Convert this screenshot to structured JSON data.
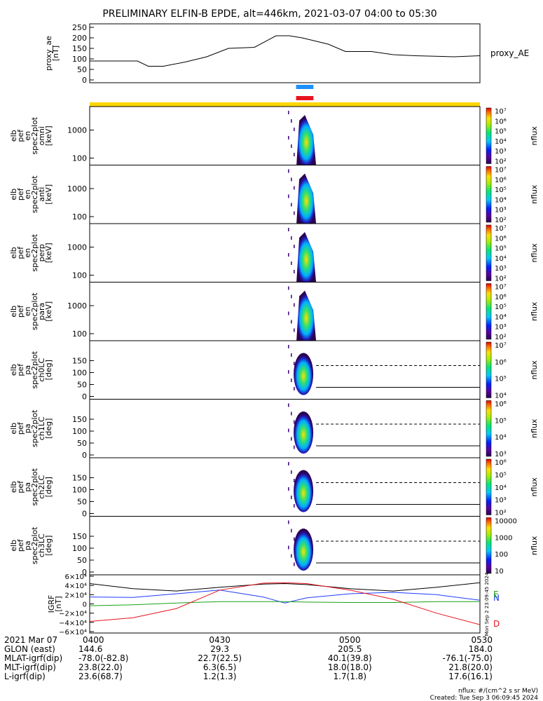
{
  "title": "PRELIMINARY ELFIN-B EPDE, alt=446km, 2021-03-07 04:00 to 05:30",
  "proxy_ae": {
    "ylabel": "proxy_ae [nT]",
    "ylabel_lines": [
      "proxy_ae",
      "[nT]"
    ],
    "legend": "proxy_AE",
    "yticks": [
      "0",
      "50",
      "100",
      "150",
      "200",
      "250"
    ],
    "chart_data": {
      "type": "line",
      "x_minutes": [
        0,
        11,
        13.5,
        17,
        22,
        27,
        32,
        38,
        43,
        46,
        49,
        55,
        59,
        62,
        65,
        70,
        75,
        84,
        90
      ],
      "values": [
        90,
        90,
        65,
        65,
        85,
        110,
        150,
        155,
        210,
        210,
        200,
        170,
        135,
        135,
        135,
        120,
        115,
        110,
        115
      ],
      "ylim": [
        0,
        260
      ]
    }
  },
  "markers": [
    {
      "color": "#1e90ff",
      "x_start_min": 47.6,
      "x_end_min": 51.6
    },
    {
      "color": "#e8141e",
      "x_start_min": 47.6,
      "x_end_min": 51.6
    }
  ],
  "science_bar_color": "#ffd700",
  "spectrogram_panels": [
    {
      "ylabel_lines": [
        "elb",
        "pef",
        "en",
        "spec2plot",
        "omni",
        "[keV]"
      ],
      "yticks": [
        "100",
        "1000"
      ],
      "scale": "log",
      "colorbar": {
        "label": "nflux",
        "ticks": [
          "10²",
          "10³",
          "10⁴",
          "10⁵",
          "10⁶",
          "10⁷"
        ]
      }
    },
    {
      "ylabel_lines": [
        "elb",
        "pef",
        "en",
        "spec2plot",
        "anti",
        "[keV]"
      ],
      "yticks": [
        "100",
        "1000"
      ],
      "scale": "log",
      "colorbar": {
        "label": "nflux",
        "ticks": [
          "10²",
          "10³",
          "10⁴",
          "10⁵",
          "10⁶",
          "10⁷"
        ]
      }
    },
    {
      "ylabel_lines": [
        "elb",
        "pef",
        "en",
        "spec2plot",
        "perp",
        "[keV]"
      ],
      "yticks": [
        "100",
        "1000"
      ],
      "scale": "log",
      "colorbar": {
        "label": "nflux",
        "ticks": [
          "10²",
          "10³",
          "10⁴",
          "10⁵",
          "10⁶",
          "10⁷"
        ]
      }
    },
    {
      "ylabel_lines": [
        "elb",
        "pef",
        "en",
        "spec2plot",
        "para",
        "[keV]"
      ],
      "yticks": [
        "100",
        "1000"
      ],
      "scale": "log",
      "colorbar": {
        "label": "nflux",
        "ticks": [
          "10²",
          "10³",
          "10⁴",
          "10⁵",
          "10⁶",
          "10⁷"
        ]
      }
    },
    {
      "ylabel_lines": [
        "elb",
        "pef",
        "pa",
        "spec2plot",
        "ch0LC",
        "[deg]"
      ],
      "yticks": [
        "0",
        "50",
        "100",
        "150"
      ],
      "scale": "lin",
      "colorbar": {
        "label": "nflux",
        "ticks": [
          "10⁴",
          "10⁵",
          "10⁶",
          "10⁷"
        ]
      }
    },
    {
      "ylabel_lines": [
        "elb",
        "pef",
        "pa",
        "spec2plot",
        "ch1LC",
        "[deg]"
      ],
      "yticks": [
        "0",
        "50",
        "100",
        "150"
      ],
      "scale": "lin",
      "colorbar": {
        "label": "nflux",
        "ticks": [
          "10³",
          "10⁴",
          "10⁵",
          "10⁶"
        ]
      }
    },
    {
      "ylabel_lines": [
        "elb",
        "pef",
        "pa",
        "spec2plot",
        "ch2LC",
        "[deg]"
      ],
      "yticks": [
        "0",
        "50",
        "100",
        "150"
      ],
      "scale": "lin",
      "colorbar": {
        "label": "nflux",
        "ticks": [
          "10²",
          "10³",
          "10⁴",
          "10⁵",
          "10⁶"
        ]
      }
    },
    {
      "ylabel_lines": [
        "elb",
        "pef",
        "pa",
        "spec2plot",
        "ch3LC",
        "[deg]"
      ],
      "yticks": [
        "0",
        "50",
        "100",
        "150"
      ],
      "scale": "lin",
      "colorbar": {
        "label": "nflux",
        "ticks": [
          "10",
          "100",
          "1000",
          "10000"
        ]
      }
    }
  ],
  "igrf": {
    "ylabel_lines": [
      "IGRF",
      "[nT]"
    ],
    "yticks": [
      "−6×10⁴",
      "−4×10⁴",
      "−2×10⁴",
      "0",
      "2×10⁴",
      "4×10⁴",
      "6×10⁴"
    ],
    "legend": [
      {
        "label": "N",
        "color": "#1e3cff"
      },
      {
        "label": "E",
        "color": "#1aa01a"
      },
      {
        "label": "D",
        "color": "#e8141e"
      }
    ],
    "chart_data": {
      "type": "line",
      "ylim": [
        -60000,
        60000
      ],
      "x_minutes": [
        0,
        10,
        20,
        30,
        40,
        45,
        50,
        60,
        70,
        80,
        90
      ],
      "series": [
        {
          "color": "#000000",
          "values": [
            44000,
            33000,
            28000,
            36000,
            43000,
            44000,
            42000,
            33000,
            28000,
            36000,
            46000
          ]
        },
        {
          "color": "#1e3cff",
          "values": [
            15000,
            14000,
            22000,
            30000,
            15000,
            2000,
            13000,
            22000,
            25000,
            20000,
            8000
          ]
        },
        {
          "color": "#1aa01a",
          "values": [
            -4000,
            -2000,
            2000,
            5000,
            5000,
            5000,
            4000,
            3000,
            3000,
            5000,
            5000
          ]
        },
        {
          "color": "#e8141e",
          "values": [
            -38000,
            -30000,
            -10000,
            30000,
            45000,
            46000,
            44000,
            30000,
            10000,
            -20000,
            -45000
          ]
        }
      ]
    }
  },
  "ticks_and_rows": {
    "row_labels": [
      "2021 Mar 07",
      "GLON (east)",
      "MLAT-igrf(dip)",
      "MLT-igrf(dip)",
      "L-igrf(dip)"
    ],
    "columns": [
      {
        "time": "0400",
        "values": [
          "144.6",
          "-78.0(-82.8)",
          "23.8(22.0)",
          "23.6(68.7)"
        ]
      },
      {
        "time": "0430",
        "values": [
          "29.3",
          "22.7(22.5)",
          "6.3(6.5)",
          "1.2(1.3)"
        ]
      },
      {
        "time": "0500",
        "values": [
          "205.5",
          "40.1(39.8)",
          "18.0(18.0)",
          "1.7(1.8)"
        ]
      },
      {
        "time": "0530",
        "values": [
          "184.0",
          "-76.1(-75.0)",
          "21.8(20.0)",
          "17.6(16.1)"
        ]
      }
    ]
  },
  "footer": {
    "units": "nflux: #/(cm^2 s sr MeV)",
    "created": "Created: Tue Sep  3 06:09:45 2024",
    "side_stamp": "Mon Sep  2 23:09:45 2024"
  }
}
